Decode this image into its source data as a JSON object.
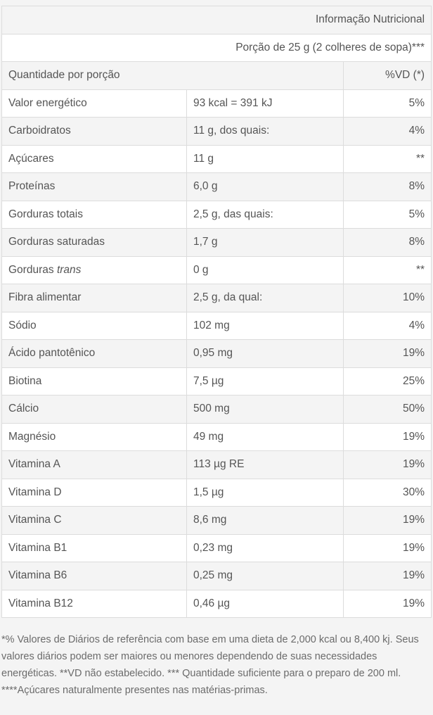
{
  "table": {
    "title": "Informação Nutricional",
    "portion": "Porção de 25 g (2 colheres de sopa)***",
    "header": {
      "quantity_label": "Quantidade por porção",
      "vd_label": "%VD (*)"
    },
    "rows": [
      {
        "name": "Valor energético",
        "amount": "93 kcal = 391 kJ",
        "vd": "5%"
      },
      {
        "name": "Carboidratos",
        "amount": "11 g, dos quais:",
        "vd": "4%"
      },
      {
        "name": "Açúcares",
        "amount": "11 g",
        "vd": "**"
      },
      {
        "name": "Proteínas",
        "amount": "6,0 g",
        "vd": "8%"
      },
      {
        "name": "Gorduras totais",
        "amount": "2,5 g, das quais:",
        "vd": "5%"
      },
      {
        "name": "Gorduras saturadas",
        "amount": "1,7 g",
        "vd": "8%"
      },
      {
        "name": "Gorduras",
        "name_italic": "trans",
        "amount": "0 g",
        "vd": "**"
      },
      {
        "name": "Fibra alimentar",
        "amount": "2,5 g, da qual:",
        "vd": "10%"
      },
      {
        "name": "Sódio",
        "amount": "102 mg",
        "vd": "4%"
      },
      {
        "name": "Ácido pantotênico",
        "amount": "0,95 mg",
        "vd": "19%"
      },
      {
        "name": "Biotina",
        "amount": "7,5 µg",
        "vd": "25%"
      },
      {
        "name": "Cálcio",
        "amount": "500 mg",
        "vd": "50%"
      },
      {
        "name": "Magnésio",
        "amount": "49 mg",
        "vd": "19%"
      },
      {
        "name": "Vitamina A",
        "amount": "113 µg RE",
        "vd": "19%"
      },
      {
        "name": "Vitamina D",
        "amount": "1,5 µg",
        "vd": "30%"
      },
      {
        "name": "Vitamina C",
        "amount": "8,6 mg",
        "vd": "19%"
      },
      {
        "name": "Vitamina B1",
        "amount": "0,23 mg",
        "vd": "19%"
      },
      {
        "name": "Vitamina B6",
        "amount": "0,25 mg",
        "vd": "19%"
      },
      {
        "name": "Vitamina B12",
        "amount": "0,46 µg",
        "vd": "19%"
      }
    ]
  },
  "footnote": "*% Valores de Diários de referência com base em uma dieta de 2,000 kcal ou 8,400 kj. Seus valores diários podem ser maiores ou menores dependendo de suas necessidades energéticas. **VD não estabelecido. *** Quantidade suficiente para o preparo de 200 ml. ****Açúcares naturalmente presentes nas matérias-primas."
}
